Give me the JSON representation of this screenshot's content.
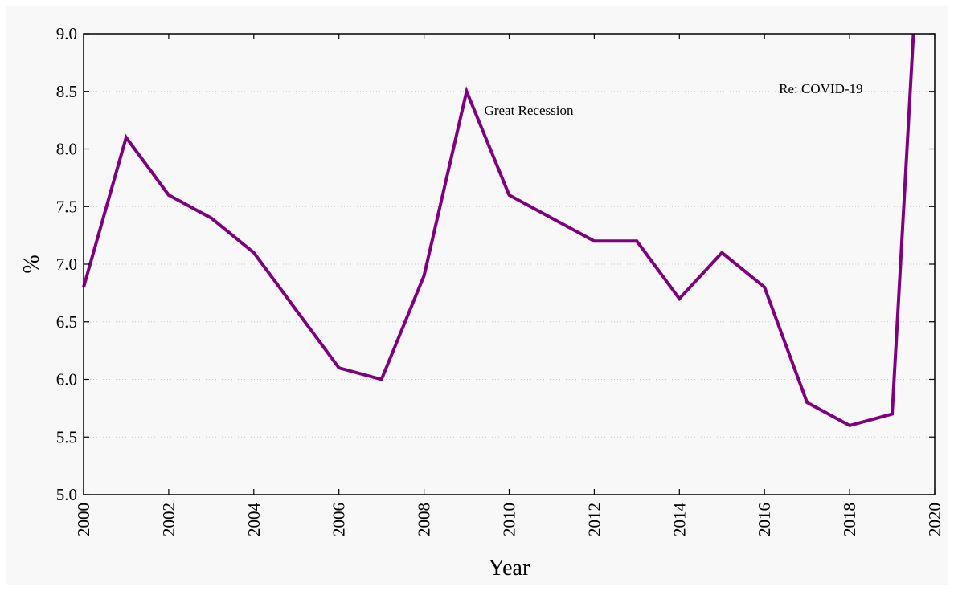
{
  "chart_data": {
    "type": "line",
    "xlabel": "Year",
    "ylabel": "%",
    "xlim": [
      2000,
      2020
    ],
    "ylim": [
      5.0,
      9.0
    ],
    "x_ticks": [
      2000,
      2002,
      2004,
      2006,
      2008,
      2010,
      2012,
      2014,
      2016,
      2018,
      2020
    ],
    "x_tick_labels": [
      "2000",
      "2002",
      "2004",
      "2006",
      "2008",
      "2010",
      "2012",
      "2014",
      "2016",
      "2018",
      "2020"
    ],
    "y_ticks": [
      5.0,
      5.5,
      6.0,
      6.5,
      7.0,
      7.5,
      8.0,
      8.5,
      9.0
    ],
    "y_tick_labels": [
      "5.0",
      "5.5",
      "6.0",
      "6.5",
      "7.0",
      "7.5",
      "8.0",
      "8.5",
      "9.0"
    ],
    "grid": "horizontal dotted",
    "series": [
      {
        "color": "#800080",
        "x": [
          2000,
          2001,
          2002,
          2003,
          2004,
          2005,
          2006,
          2007,
          2008,
          2009,
          2010,
          2011,
          2012,
          2013,
          2014,
          2015,
          2016,
          2017,
          2018,
          2019,
          2019.5
        ],
        "y": [
          6.8,
          8.1,
          7.6,
          7.4,
          7.1,
          6.6,
          6.1,
          6.0,
          6.9,
          8.5,
          7.6,
          7.4,
          7.2,
          7.2,
          6.7,
          7.1,
          6.8,
          5.8,
          5.6,
          5.7,
          9.0
        ]
      }
    ],
    "annotations": [
      {
        "text": "Great Recession",
        "x": 2009,
        "y": 8.5
      },
      {
        "text": "Re: COVID-19",
        "x": 2019.5,
        "y": 8.5
      }
    ],
    "colors": {
      "background": "#f8f8f8",
      "frame": "#000000",
      "grid": "#c8c8c8",
      "line": "#800080"
    }
  }
}
